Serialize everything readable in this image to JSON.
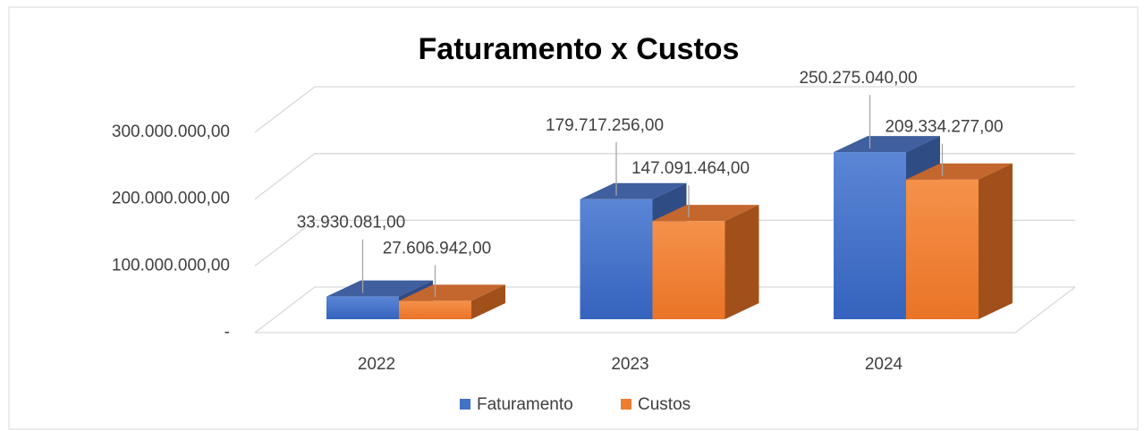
{
  "chart_data": {
    "type": "bar3d",
    "title": "Faturamento x Custos",
    "categories": [
      "2022",
      "2023",
      "2024"
    ],
    "series": [
      {
        "name": "Faturamento",
        "color": "#4472c4",
        "values": [
          33930081,
          179717256,
          250275040
        ],
        "value_labels": [
          "33.930.081,00",
          "179.717.256,00",
          "250.275.040,00"
        ]
      },
      {
        "name": "Custos",
        "color": "#ed7d31",
        "values": [
          27606942,
          147091464,
          209334277
        ],
        "value_labels": [
          "27.606.942,00",
          "147.091.464,00",
          "209.334.277,00"
        ]
      }
    ],
    "ylim": [
      0,
      300000000
    ],
    "yticks": [
      {
        "value": 0,
        "label": "-"
      },
      {
        "value": 100000000,
        "label": "100.000.000,00"
      },
      {
        "value": 200000000,
        "label": "200.000.000,00"
      },
      {
        "value": 300000000,
        "label": "300.000.000,00"
      }
    ],
    "grid": true,
    "legend": "bottom"
  }
}
